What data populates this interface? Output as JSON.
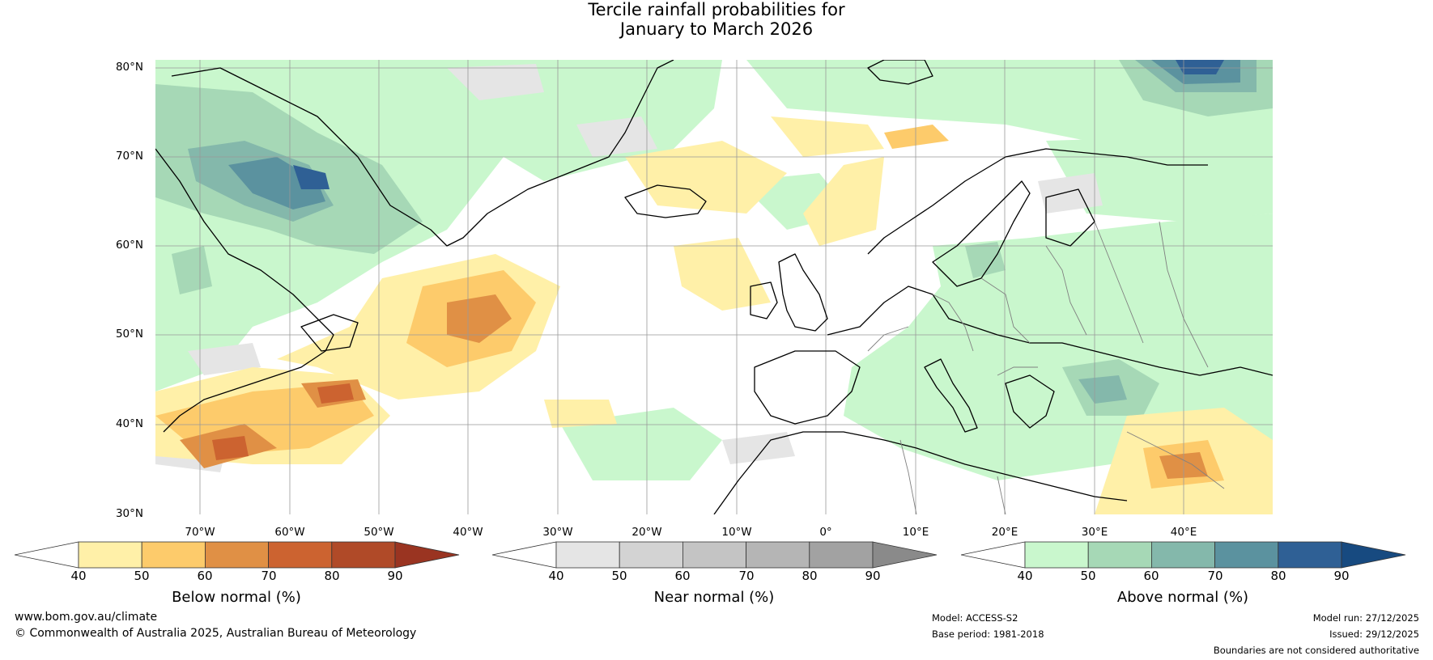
{
  "title": {
    "line1": "Tercile rainfall probabilities for",
    "line2": "January to March 2026"
  },
  "map": {
    "lat_labels": [
      "80°N",
      "70°N",
      "60°N",
      "50°N",
      "40°N",
      "30°N"
    ],
    "lon_labels": [
      "70°W",
      "60°W",
      "50°W",
      "40°W",
      "30°W",
      "20°W",
      "10°W",
      "0°",
      "10°E",
      "20°E",
      "30°E",
      "40°E"
    ],
    "colors": {
      "land_line": "#000000",
      "border_line": "#808080",
      "grid": "#999999"
    }
  },
  "colorbars": [
    {
      "name": "below",
      "title": "Below normal (%)",
      "ticks": [
        "40",
        "50",
        "60",
        "70",
        "80",
        "90"
      ],
      "low_color": "#ffffff",
      "colors": [
        "#fff0a8",
        "#fdcb6b",
        "#e09045",
        "#cc6330",
        "#b04a28"
      ],
      "high_color": "#9a3421"
    },
    {
      "name": "near",
      "title": "Near normal (%)",
      "ticks": [
        "40",
        "50",
        "60",
        "70",
        "80",
        "90"
      ],
      "low_color": "#ffffff",
      "colors": [
        "#e5e5e5",
        "#d3d3d3",
        "#c4c4c4",
        "#b5b5b5",
        "#a2a2a2"
      ],
      "high_color": "#8a8a8a"
    },
    {
      "name": "above",
      "title": "Above normal (%)",
      "ticks": [
        "40",
        "50",
        "60",
        "70",
        "80",
        "90"
      ],
      "low_color": "#ffffff",
      "colors": [
        "#c9f7cd",
        "#a6d8b6",
        "#84b8ab",
        "#5b929f",
        "#2f6095"
      ],
      "high_color": "#174a80"
    }
  ],
  "footer": {
    "website": "www.bom.gov.au/climate",
    "copyright": "© Commonwealth of Australia 2025, Australian Bureau of Meteorology",
    "model": "Model: ACCESS-S2",
    "base_period": "Base period: 1981-2018",
    "model_run": "Model run: 27/12/2025",
    "issued": "Issued: 29/12/2025",
    "disclaimer": "Boundaries are not considered authoritative"
  }
}
